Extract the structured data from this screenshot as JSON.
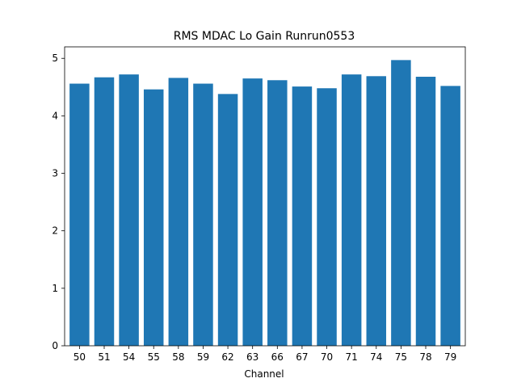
{
  "chart_data": {
    "type": "bar",
    "title": "RMS MDAC Lo Gain Runrun0553",
    "xlabel": "Channel",
    "ylabel": "",
    "categories": [
      "50",
      "51",
      "54",
      "55",
      "58",
      "59",
      "62",
      "63",
      "66",
      "67",
      "70",
      "71",
      "74",
      "75",
      "78",
      "79"
    ],
    "values": [
      4.56,
      4.67,
      4.72,
      4.46,
      4.66,
      4.56,
      4.38,
      4.65,
      4.62,
      4.51,
      4.48,
      4.72,
      4.69,
      4.97,
      4.68,
      4.52
    ],
    "ylim": [
      0,
      5.2
    ],
    "yticks": [
      "0",
      "1",
      "2",
      "3",
      "4",
      "5"
    ],
    "grid": false,
    "legend": "none",
    "bar_color": "#1f77b4"
  }
}
